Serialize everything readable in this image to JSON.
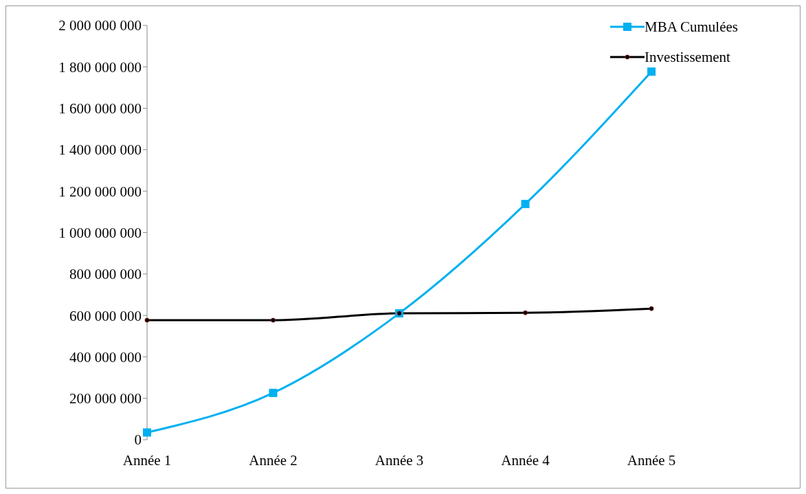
{
  "chart_data": {
    "type": "line",
    "categories": [
      "Année 1",
      "Année 2",
      "Année 3",
      "Année 4",
      "Année 5"
    ],
    "series": [
      {
        "name": "MBA Cumulées",
        "color": "#00b0f0",
        "marker": "square",
        "values": [
          35000000,
          226000000,
          610000000,
          1138000000,
          1777000000
        ]
      },
      {
        "name": "Investissement",
        "color": "#000000",
        "marker": "circle",
        "values": [
          577000000,
          577000000,
          610000000,
          613000000,
          633000000
        ]
      }
    ],
    "ylim": [
      0,
      2000000000
    ],
    "yticks": [
      {
        "value": 0,
        "label": "0"
      },
      {
        "value": 200000000,
        "label": "200 000 000"
      },
      {
        "value": 400000000,
        "label": "400 000 000"
      },
      {
        "value": 600000000,
        "label": "600 000 000"
      },
      {
        "value": 800000000,
        "label": "800 000 000"
      },
      {
        "value": 1000000000,
        "label": "1 000 000 000"
      },
      {
        "value": 1200000000,
        "label": "1 200 000 000"
      },
      {
        "value": 1400000000,
        "label": "1 400 000 000"
      },
      {
        "value": 1600000000,
        "label": "1 600 000 000"
      },
      {
        "value": 1800000000,
        "label": "1 800 000 000"
      },
      {
        "value": 2000000000,
        "label": "2 000 000 000"
      }
    ],
    "legend": "top right"
  }
}
